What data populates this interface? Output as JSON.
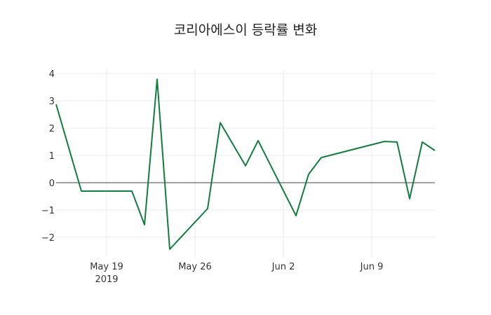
{
  "chart_data": {
    "type": "line",
    "title": "코리아에스이 등락률 변화",
    "xlabel": "",
    "ylabel": "",
    "x": [
      "2019-05-15",
      "2019-05-17",
      "2019-05-21",
      "2019-05-22",
      "2019-05-23",
      "2019-05-24",
      "2019-05-27",
      "2019-05-28",
      "2019-05-30",
      "2019-05-31",
      "2019-06-03",
      "2019-06-04",
      "2019-06-05",
      "2019-06-10",
      "2019-06-11",
      "2019-06-12",
      "2019-06-13",
      "2019-06-14"
    ],
    "series": [
      {
        "name": "등락률",
        "color": "#137c40",
        "values": [
          2.87,
          -0.31,
          -0.31,
          -1.54,
          3.79,
          -2.44,
          -0.95,
          2.2,
          0.62,
          1.54,
          -1.21,
          0.31,
          0.92,
          1.51,
          1.49,
          -0.59,
          1.49,
          1.18
        ]
      }
    ],
    "xticks": [
      {
        "date": "2019-05-19",
        "label": "May 19",
        "sublabel": "2019"
      },
      {
        "date": "2019-05-26",
        "label": "May 26",
        "sublabel": ""
      },
      {
        "date": "2019-06-02",
        "label": "Jun 2",
        "sublabel": ""
      },
      {
        "date": "2019-06-09",
        "label": "Jun 9",
        "sublabel": ""
      }
    ],
    "yticks": [
      -2,
      -1,
      0,
      1,
      2,
      3,
      4
    ],
    "ytick_labels": [
      "−2",
      "−1",
      "0",
      "1",
      "2",
      "3",
      "4"
    ],
    "xlim": [
      "2019-05-15",
      "2019-06-14"
    ],
    "ylim": [
      -2.67,
      4.13
    ],
    "grid": true,
    "zero_line": true,
    "legend": false
  }
}
